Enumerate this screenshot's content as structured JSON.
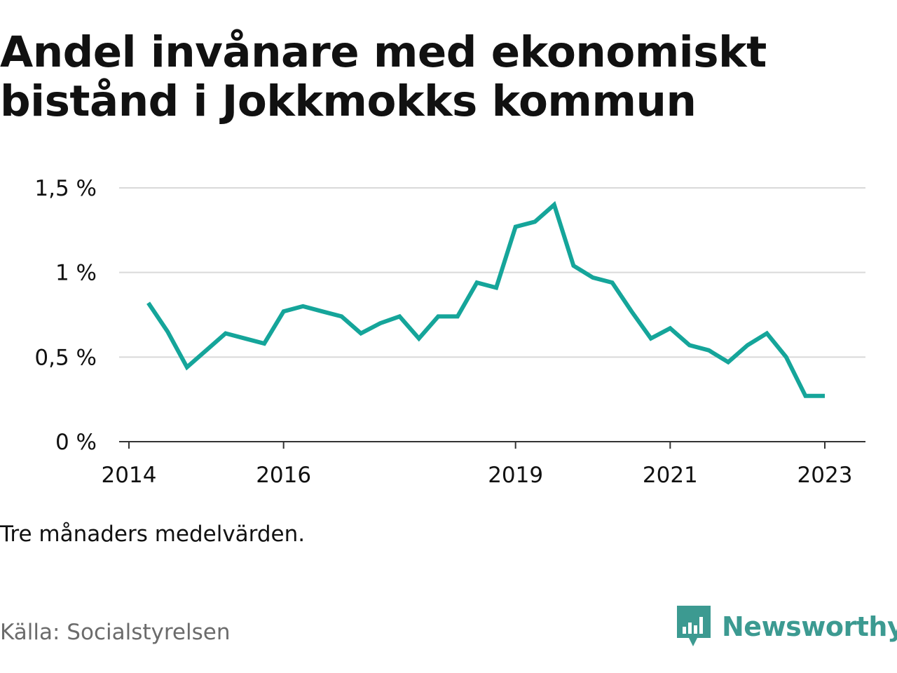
{
  "title": "Andel invånare med ekonomiskt bistånd i Jokkmokks kommun",
  "subtitle": "Tre månaders medelvärden.",
  "source": "Källa: Socialstyrelsen",
  "brand": {
    "name": "Newsworthy",
    "icon": "newsworthy-logo-icon",
    "color": "#3c9a91"
  },
  "colors": {
    "line": "#15a59a",
    "grid": "#d9d9d9",
    "axis": "#333333",
    "text": "#111111",
    "source": "#6b6b6b"
  },
  "chart_data": {
    "type": "line",
    "title": "Andel invånare med ekonomiskt bistånd i Jokkmokks kommun",
    "xlabel": "",
    "ylabel": "",
    "x_unit": "year (quarterly, decimal)",
    "xlim": [
      2014,
      2023.5
    ],
    "ylim": [
      0,
      1.5
    ],
    "grid": true,
    "y_ticks": [
      {
        "value": 0,
        "label": "0 %"
      },
      {
        "value": 0.5,
        "label": "0,5 %"
      },
      {
        "value": 1,
        "label": "1 %"
      },
      {
        "value": 1.5,
        "label": "1,5 %"
      }
    ],
    "x_ticks": [
      {
        "value": 2014,
        "label": "2014"
      },
      {
        "value": 2016,
        "label": "2016"
      },
      {
        "value": 2019,
        "label": "2019"
      },
      {
        "value": 2021,
        "label": "2021"
      },
      {
        "value": 2023,
        "label": "2023"
      }
    ],
    "series": [
      {
        "color": "#15a59a",
        "points": [
          [
            2014.25,
            0.82
          ],
          [
            2014.5,
            0.65
          ],
          [
            2014.75,
            0.44
          ],
          [
            2015.0,
            0.54
          ],
          [
            2015.25,
            0.64
          ],
          [
            2015.5,
            0.61
          ],
          [
            2015.75,
            0.58
          ],
          [
            2016.0,
            0.77
          ],
          [
            2016.25,
            0.8
          ],
          [
            2016.5,
            0.77
          ],
          [
            2016.75,
            0.74
          ],
          [
            2017.0,
            0.64
          ],
          [
            2017.25,
            0.7
          ],
          [
            2017.5,
            0.74
          ],
          [
            2017.75,
            0.61
          ],
          [
            2018.0,
            0.74
          ],
          [
            2018.25,
            0.74
          ],
          [
            2018.5,
            0.94
          ],
          [
            2018.75,
            0.91
          ],
          [
            2019.0,
            1.27
          ],
          [
            2019.25,
            1.3
          ],
          [
            2019.5,
            1.4
          ],
          [
            2019.75,
            1.04
          ],
          [
            2020.0,
            0.97
          ],
          [
            2020.25,
            0.94
          ],
          [
            2020.5,
            0.77
          ],
          [
            2020.75,
            0.61
          ],
          [
            2021.0,
            0.67
          ],
          [
            2021.25,
            0.57
          ],
          [
            2021.5,
            0.54
          ],
          [
            2021.75,
            0.47
          ],
          [
            2022.0,
            0.57
          ],
          [
            2022.25,
            0.64
          ],
          [
            2022.5,
            0.5
          ],
          [
            2022.75,
            0.27
          ],
          [
            2023.0,
            0.27
          ]
        ]
      }
    ]
  }
}
